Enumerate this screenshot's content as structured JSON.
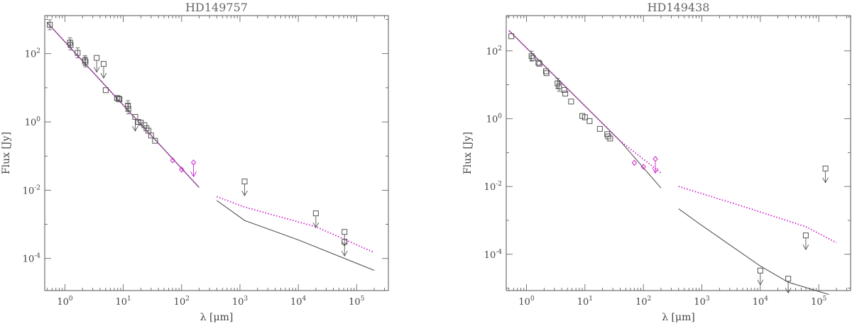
{
  "chart_data": [
    {
      "type": "scatter",
      "title": "HD149757",
      "xlabel": "λ [μm]",
      "ylabel": "Flux [Jy]",
      "xscale": "log",
      "yscale": "log",
      "xlim": [
        0.45,
        350000
      ],
      "ylim": [
        1.15e-05,
        1300
      ],
      "x_ticks": [
        {
          "value": 1,
          "base": "10",
          "exp": "0"
        },
        {
          "value": 10,
          "base": "10",
          "exp": "1"
        },
        {
          "value": 100,
          "base": "10",
          "exp": "2"
        },
        {
          "value": 1000,
          "base": "10",
          "exp": "3"
        },
        {
          "value": 10000,
          "base": "10",
          "exp": "4"
        },
        {
          "value": 100000,
          "base": "10",
          "exp": "5"
        }
      ],
      "y_ticks": [
        {
          "value": 0.0001,
          "base": "10",
          "exp": "-4"
        },
        {
          "value": 0.01,
          "base": "10",
          "exp": "-2"
        },
        {
          "value": 1,
          "base": "10",
          "exp": "0"
        },
        {
          "value": 100,
          "base": "10",
          "exp": "2"
        }
      ],
      "series": [
        {
          "style": "solid",
          "color": "#555555",
          "segments": [
            [
              [
                0.5,
                800
              ],
              [
                200,
                0.012
              ]
            ],
            [
              [
                400,
                0.005
              ],
              [
                1200,
                0.0013
              ],
              [
                10000,
                0.00035
              ],
              [
                200000,
                4.5e-05
              ]
            ]
          ]
        },
        {
          "style": "dotted",
          "color": "#cc22cc",
          "segments": [
            [
              [
                0.5,
                800
              ],
              [
                200,
                0.012
              ]
            ],
            [
              [
                400,
                0.0065
              ],
              [
                1200,
                0.0032
              ],
              [
                20000,
                0.00085
              ],
              [
                200000,
                0.00015
              ]
            ]
          ]
        }
      ],
      "points": [
        {
          "x": 0.55,
          "y": 700,
          "marker": "square",
          "err": true
        },
        {
          "x": 1.22,
          "y": 210,
          "marker": "square",
          "err": true
        },
        {
          "x": 1.25,
          "y": 180,
          "marker": "square",
          "err": true
        },
        {
          "x": 1.65,
          "y": 105,
          "marker": "square",
          "err": true
        },
        {
          "x": 2.2,
          "y": 63,
          "marker": "square",
          "err": true
        },
        {
          "x": 2.25,
          "y": 57,
          "marker": "square",
          "err": true
        },
        {
          "x": 5.0,
          "y": 8.5,
          "marker": "square"
        },
        {
          "x": 7.8,
          "y": 5.0,
          "marker": "square"
        },
        {
          "x": 8.3,
          "y": 4.8,
          "marker": "square"
        },
        {
          "x": 8.6,
          "y": 4.6,
          "marker": "square"
        },
        {
          "x": 12,
          "y": 3.0,
          "marker": "square",
          "err": true
        },
        {
          "x": 12.2,
          "y": 2.4,
          "marker": "square",
          "err": true
        },
        {
          "x": 18,
          "y": 1.0,
          "marker": "square"
        },
        {
          "x": 20,
          "y": 0.95,
          "marker": "square"
        },
        {
          "x": 23,
          "y": 0.8,
          "marker": "square"
        },
        {
          "x": 25,
          "y": 0.65,
          "marker": "square"
        },
        {
          "x": 27,
          "y": 0.55,
          "marker": "square"
        },
        {
          "x": 30,
          "y": 0.4,
          "marker": "square"
        },
        {
          "x": 35,
          "y": 0.28,
          "marker": "square"
        },
        {
          "x": 70,
          "y": 0.075,
          "marker": "diamond",
          "color": "#cc22cc"
        },
        {
          "x": 100,
          "y": 0.04,
          "marker": "diamond",
          "color": "#cc22cc"
        }
      ],
      "upper_limits": [
        {
          "x": 3.5,
          "y": 75,
          "marker": "square"
        },
        {
          "x": 4.6,
          "y": 50,
          "marker": "square"
        },
        {
          "x": 16,
          "y": 1.4,
          "marker": "square"
        },
        {
          "x": 160,
          "y": 0.065,
          "marker": "diamond",
          "color": "#cc22cc"
        },
        {
          "x": 1200,
          "y": 0.018,
          "marker": "square"
        },
        {
          "x": 20000,
          "y": 0.0021,
          "marker": "square"
        },
        {
          "x": 62000,
          "y": 0.0006,
          "marker": "square"
        },
        {
          "x": 62000,
          "y": 0.00031,
          "marker": "square"
        }
      ]
    },
    {
      "type": "scatter",
      "title": "HD149438",
      "xlabel": "λ [μm]",
      "ylabel": "Flux [Jy]",
      "xscale": "log",
      "yscale": "log",
      "xlim": [
        0.45,
        350000
      ],
      "ylim": [
        8.5e-06,
        1100
      ],
      "x_ticks": [
        {
          "value": 1,
          "base": "10",
          "exp": "0"
        },
        {
          "value": 10,
          "base": "10",
          "exp": "1"
        },
        {
          "value": 100,
          "base": "10",
          "exp": "2"
        },
        {
          "value": 1000,
          "base": "10",
          "exp": "3"
        },
        {
          "value": 10000,
          "base": "10",
          "exp": "4"
        },
        {
          "value": 100000,
          "base": "10",
          "exp": "5"
        }
      ],
      "y_ticks": [
        {
          "value": 0.0001,
          "base": "10",
          "exp": "-4"
        },
        {
          "value": 0.01,
          "base": "10",
          "exp": "-2"
        },
        {
          "value": 1,
          "base": "10",
          "exp": "0"
        },
        {
          "value": 100,
          "base": "10",
          "exp": "2"
        }
      ],
      "series": [
        {
          "style": "solid",
          "color": "#555555",
          "segments": [
            [
              [
                0.5,
                400
              ],
              [
                40,
                0.22
              ],
              [
                200,
                0.009
              ]
            ],
            [
              [
                400,
                0.0022
              ],
              [
                900,
                0.0008
              ],
              [
                10000,
                4.5e-05
              ],
              [
                30000,
                1.5e-05
              ],
              [
                150000,
                6.5e-06
              ]
            ]
          ]
        },
        {
          "style": "dotted",
          "color": "#cc22cc",
          "segments": [
            [
              [
                0.5,
                400
              ],
              [
                40,
                0.22
              ],
              [
                200,
                0.025
              ]
            ],
            [
              [
                400,
                0.01
              ],
              [
                5000,
                0.0026
              ],
              [
                60000,
                0.00065
              ],
              [
                200000,
                0.00022
              ]
            ]
          ]
        }
      ],
      "points": [
        {
          "x": 0.55,
          "y": 270,
          "marker": "square"
        },
        {
          "x": 1.22,
          "y": 70,
          "marker": "square",
          "err": true
        },
        {
          "x": 1.28,
          "y": 62,
          "marker": "square"
        },
        {
          "x": 1.6,
          "y": 45,
          "marker": "square"
        },
        {
          "x": 1.66,
          "y": 42,
          "marker": "square"
        },
        {
          "x": 2.15,
          "y": 25,
          "marker": "square"
        },
        {
          "x": 2.2,
          "y": 22,
          "marker": "square"
        },
        {
          "x": 3.4,
          "y": 11,
          "marker": "square",
          "err": true
        },
        {
          "x": 3.6,
          "y": 9,
          "marker": "square",
          "err": true
        },
        {
          "x": 4.4,
          "y": 7,
          "marker": "square"
        },
        {
          "x": 4.6,
          "y": 5.5,
          "marker": "square"
        },
        {
          "x": 5.8,
          "y": 3.2,
          "marker": "square"
        },
        {
          "x": 9,
          "y": 1.2,
          "marker": "square"
        },
        {
          "x": 10,
          "y": 1.1,
          "marker": "square"
        },
        {
          "x": 12,
          "y": 0.85,
          "marker": "square"
        },
        {
          "x": 18,
          "y": 0.5,
          "marker": "square"
        },
        {
          "x": 24,
          "y": 0.35,
          "marker": "square"
        },
        {
          "x": 25,
          "y": 0.3,
          "marker": "square"
        },
        {
          "x": 27,
          "y": 0.26,
          "marker": "square"
        },
        {
          "x": 70,
          "y": 0.05,
          "marker": "diamond",
          "color": "#cc22cc"
        },
        {
          "x": 100,
          "y": 0.038,
          "marker": "diamond",
          "color": "#cc22cc"
        }
      ],
      "upper_limits": [
        {
          "x": 160,
          "y": 0.065,
          "marker": "diamond",
          "color": "#cc22cc"
        },
        {
          "x": 10000,
          "y": 3.3e-05,
          "marker": "square"
        },
        {
          "x": 30000,
          "y": 1.9e-05,
          "marker": "square"
        },
        {
          "x": 60000,
          "y": 0.00036,
          "marker": "square"
        },
        {
          "x": 130000,
          "y": 0.034,
          "marker": "square"
        }
      ]
    }
  ]
}
